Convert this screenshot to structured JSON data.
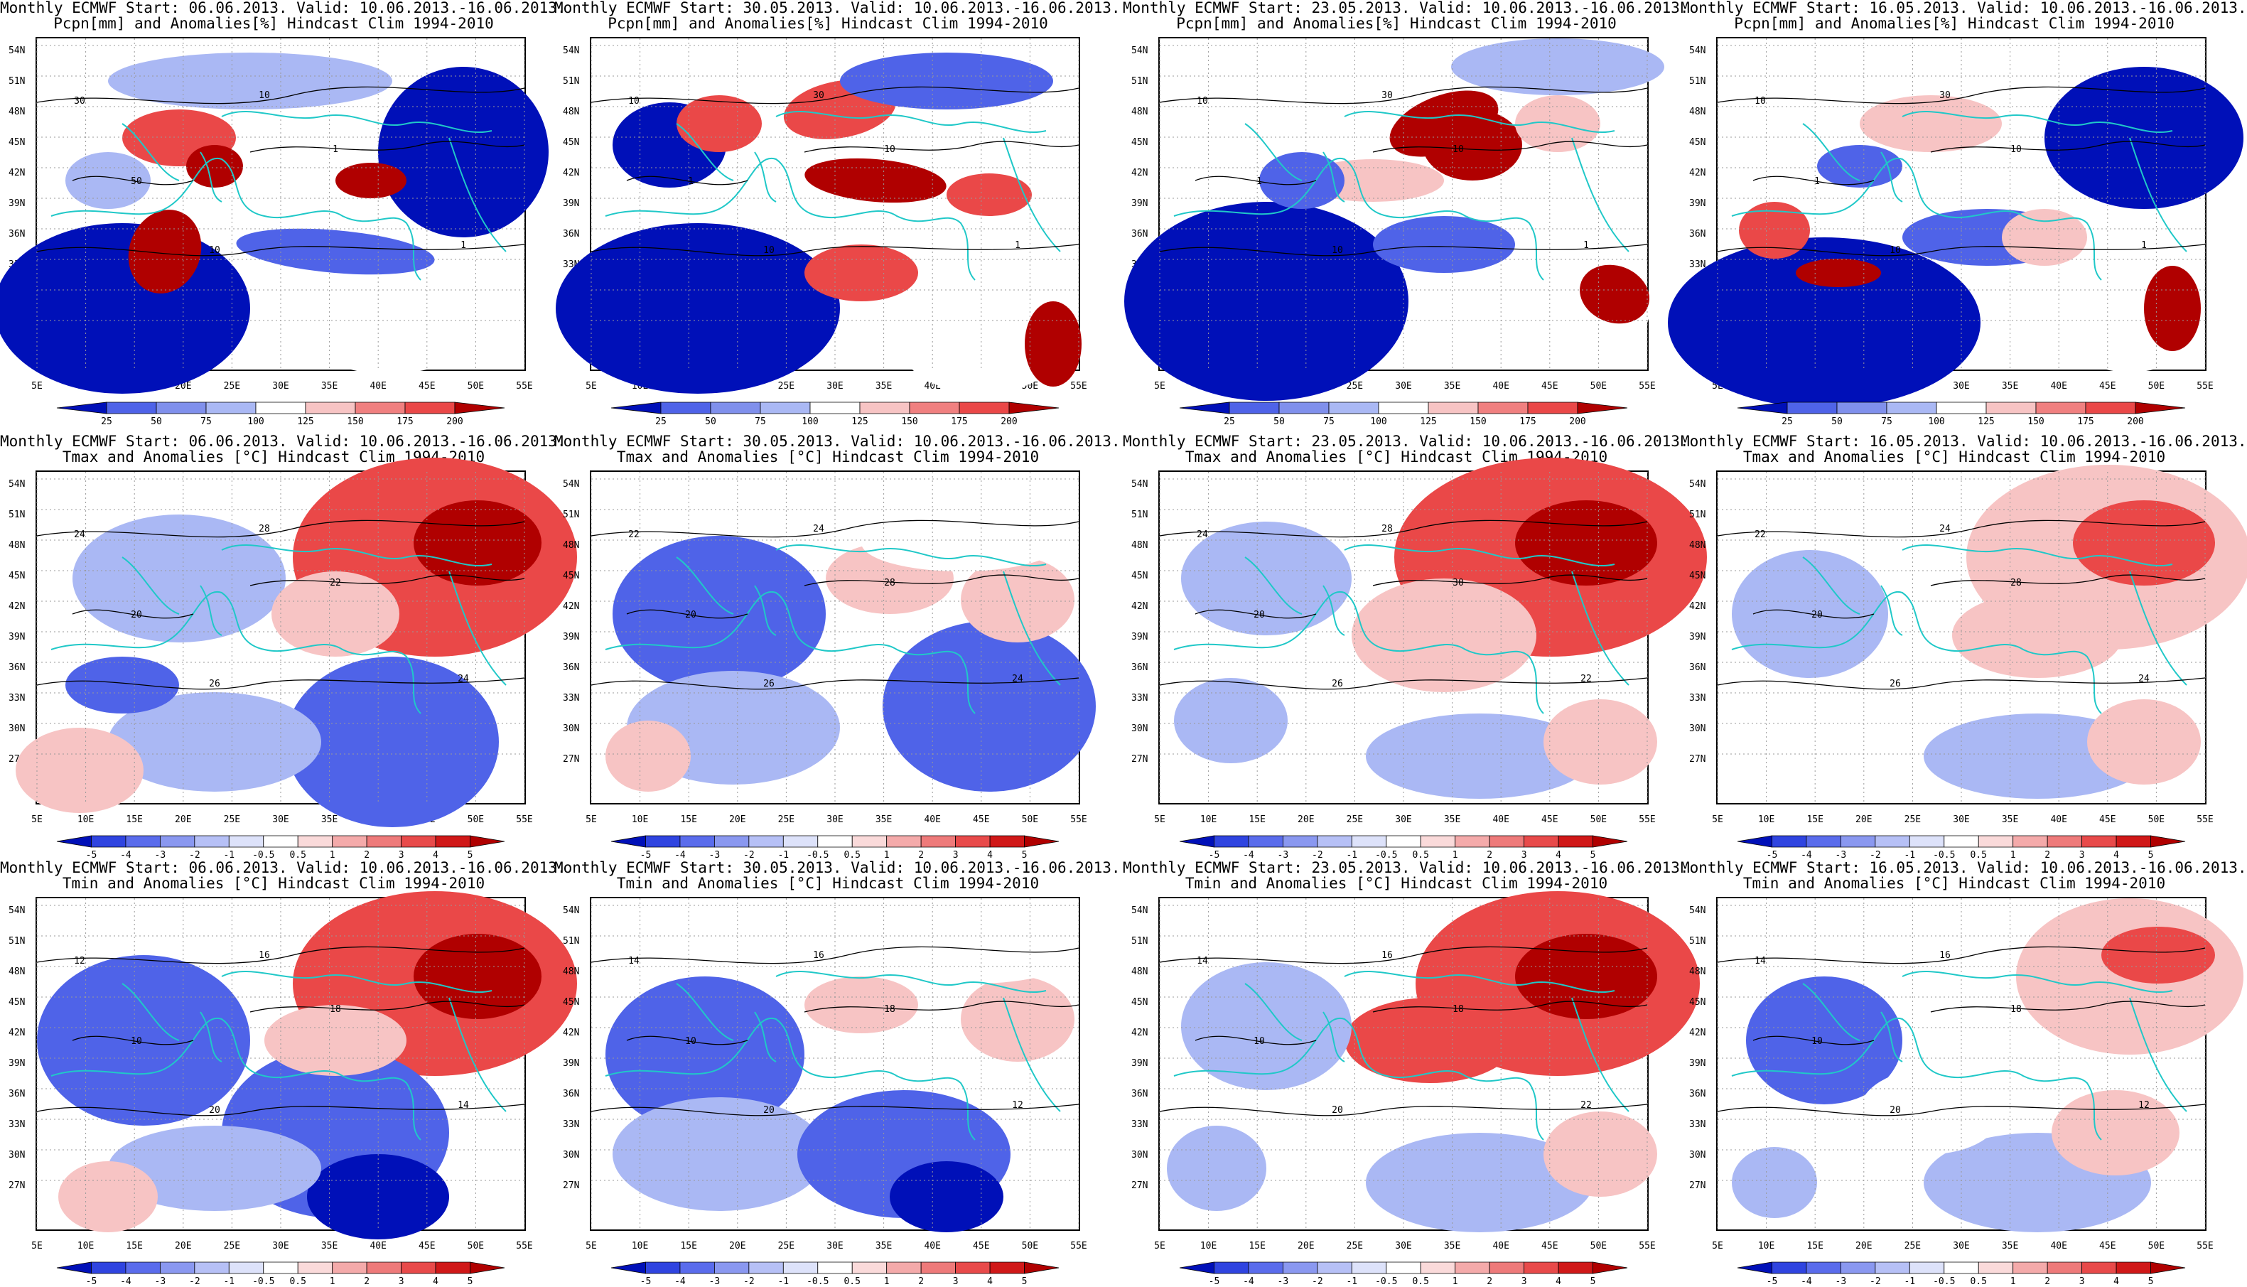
{
  "colors": {
    "deep_blue": "#0010b8",
    "blue": "#4f63e8",
    "light_blue": "#aab8f4",
    "white": "#ffffff",
    "light_red": "#f7c4c4",
    "red": "#ea4848",
    "deep_red": "#b00000",
    "coast": "#20c8c8",
    "contour": "#000000"
  },
  "axes": {
    "lat_labels": [
      "54N",
      "51N",
      "48N",
      "45N",
      "42N",
      "39N",
      "36N",
      "33N",
      "30N",
      "27N"
    ],
    "lon_labels": [
      "5E",
      "10E",
      "15E",
      "20E",
      "25E",
      "30E",
      "35E",
      "40E",
      "45E",
      "50E",
      "55E"
    ]
  },
  "colorbars": {
    "pcpn": [
      "25",
      "50",
      "75",
      "100",
      "125",
      "150",
      "175",
      "200"
    ],
    "temp": [
      "-5",
      "-4",
      "-3",
      "-2",
      "-1",
      "-0.5",
      "0.5",
      "1",
      "2",
      "3",
      "4",
      "5"
    ]
  },
  "rows": [
    {
      "variable": "pcpn",
      "title2": "Pcpn[mm] and Anomalies[%] Hindcast Clim 1994-2010",
      "panels": [
        {
          "title1": "Monthly ECMWF Start: 06.06.2013. Valid: 10.06.2013.-16.06.2013.",
          "contour_labels": [
            "30",
            "10",
            "1",
            "50",
            "10",
            "1"
          ]
        },
        {
          "title1": "Monthly ECMWF Start: 30.05.2013. Valid: 10.06.2013.-16.06.2013.",
          "contour_labels": [
            "10",
            "30",
            "10",
            "1",
            "10",
            "1"
          ]
        },
        {
          "title1": "Monthly ECMWF Start: 23.05.2013. Valid: 10.06.2013.-16.06.2013.",
          "contour_labels": [
            "10",
            "30",
            "10",
            "1",
            "10",
            "1"
          ]
        },
        {
          "title1": "Monthly ECMWF Start: 16.05.2013. Valid: 10.06.2013.-16.06.2013.",
          "contour_labels": [
            "10",
            "30",
            "10",
            "1",
            "10",
            "1"
          ]
        }
      ]
    },
    {
      "variable": "tmax",
      "title2": "Tmax and Anomalies [°C] Hindcast Clim 1994-2010",
      "panels": [
        {
          "title1": "Monthly ECMWF Start: 06.06.2013. Valid: 10.06.2013.-16.06.2013.",
          "contour_labels": [
            "24",
            "28",
            "22",
            "20",
            "26",
            "24"
          ]
        },
        {
          "title1": "Monthly ECMWF Start: 30.05.2013. Valid: 10.06.2013.-16.06.2013.",
          "contour_labels": [
            "22",
            "24",
            "28",
            "20",
            "26",
            "24"
          ]
        },
        {
          "title1": "Monthly ECMWF Start: 23.05.2013. Valid: 10.06.2013.-16.06.2013.",
          "contour_labels": [
            "24",
            "28",
            "30",
            "20",
            "26",
            "22"
          ]
        },
        {
          "title1": "Monthly ECMWF Start: 16.05.2013. Valid: 10.06.2013.-16.06.2013.",
          "contour_labels": [
            "22",
            "24",
            "28",
            "20",
            "26",
            "24"
          ]
        }
      ]
    },
    {
      "variable": "tmin",
      "title2": "Tmin and Anomalies [°C] Hindcast Clim 1994-2010",
      "panels": [
        {
          "title1": "Monthly ECMWF Start: 06.06.2013. Valid: 10.06.2013.-16.06.2013.",
          "contour_labels": [
            "12",
            "16",
            "18",
            "10",
            "20",
            "14"
          ]
        },
        {
          "title1": "Monthly ECMWF Start: 30.05.2013. Valid: 10.06.2013.-16.06.2013.",
          "contour_labels": [
            "14",
            "16",
            "18",
            "10",
            "20",
            "12"
          ]
        },
        {
          "title1": "Monthly ECMWF Start: 23.05.2013. Valid: 10.06.2013.-16.06.2013.",
          "contour_labels": [
            "14",
            "16",
            "18",
            "10",
            "20",
            "22"
          ]
        },
        {
          "title1": "Monthly ECMWF Start: 16.05.2013. Valid: 10.06.2013.-16.06.2013.",
          "contour_labels": [
            "14",
            "16",
            "18",
            "10",
            "20",
            "12"
          ]
        }
      ]
    }
  ]
}
